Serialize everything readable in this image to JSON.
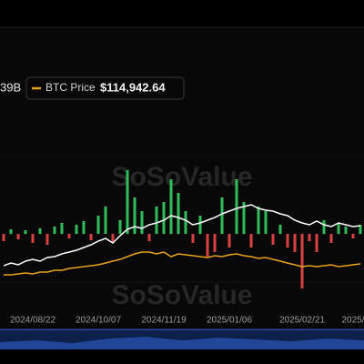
{
  "chart_data": {
    "type": "bar",
    "legend_values": [
      "39B"
    ],
    "price_label": "BTC Price",
    "price_value": "$114,942.64",
    "watermark": "SoSoValue",
    "categories": [
      null,
      null,
      null,
      null,
      "2024/08/22",
      null,
      null,
      null,
      null,
      null,
      null,
      null,
      null,
      "2024/10/07",
      null,
      null,
      null,
      null,
      null,
      null,
      null,
      null,
      "2024/11/19",
      null,
      null,
      null,
      null,
      null,
      null,
      null,
      null,
      "2025/01/06",
      null,
      null,
      null,
      null,
      null,
      null,
      null,
      null,
      null,
      "2025/02/21",
      null,
      null,
      null,
      null,
      null,
      null,
      "2025/",
      null
    ],
    "ylim": [
      -100,
      100
    ],
    "series": [
      {
        "color": "#2fbf5a",
        "neg_color": "#d94040",
        "values": [
          -8,
          5,
          -6,
          4,
          -10,
          6,
          -12,
          8,
          12,
          -5,
          10,
          14,
          -7,
          20,
          30,
          -10,
          15,
          70,
          40,
          25,
          -8,
          30,
          35,
          60,
          45,
          25,
          -10,
          20,
          -25,
          -20,
          40,
          -15,
          60,
          35,
          -15,
          30,
          25,
          -12,
          10,
          -15,
          -20,
          -60,
          -8,
          -20,
          15,
          -10,
          12,
          8,
          -5,
          10
        ]
      },
      {
        "color": "#ffffff",
        "values": [
          -35,
          -32,
          -34,
          -30,
          -28,
          -30,
          -26,
          -25,
          -22,
          -20,
          -18,
          -15,
          -12,
          -8,
          -5,
          -10,
          -2,
          5,
          8,
          6,
          10,
          12,
          15,
          20,
          18,
          15,
          10,
          12,
          15,
          18,
          22,
          25,
          28,
          30,
          32,
          28,
          26,
          25,
          22,
          20,
          15,
          12,
          10,
          14,
          10,
          8,
          12,
          10,
          8,
          9
        ]
      },
      {
        "name": "BTC Price",
        "color": "#e8a317",
        "values": [
          -45,
          -45,
          -44,
          -43,
          -44,
          -42,
          -42,
          -40,
          -40,
          -38,
          -37,
          -36,
          -35,
          -34,
          -32,
          -30,
          -28,
          -25,
          -22,
          -20,
          -20,
          -22,
          -20,
          -25,
          -22,
          -23,
          -24,
          -25,
          -26,
          -24,
          -25,
          -23,
          -22,
          -24,
          -25,
          -27,
          -26,
          -28,
          -30,
          -32,
          -34,
          -36,
          -35,
          -36,
          -35,
          -34,
          -36,
          -35,
          -34,
          -33
        ]
      }
    ]
  }
}
